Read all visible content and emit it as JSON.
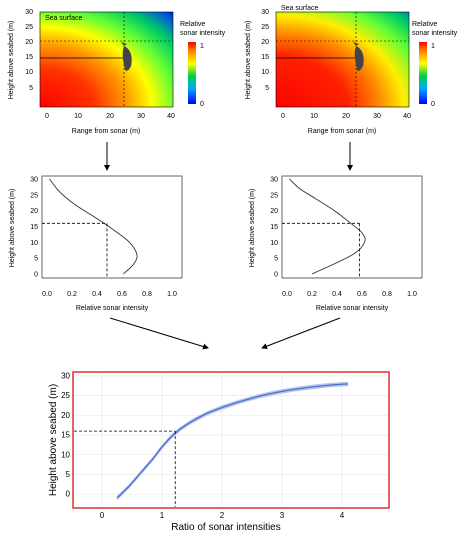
{
  "colors": {
    "heatmap_high": "#ff1a00",
    "heatmap_mid": "#ffff00",
    "heatmap_low": "#0000ff",
    "curve": "#4a6fd6",
    "curve_band": "#b8c4e8",
    "frame_red": "#e0302a"
  },
  "heatmaps": [
    {
      "sea_surface": "Sea surface",
      "y_label": "Height above seabed (m)",
      "x_label": "Range from sonar (m)",
      "x_ticks": [
        "0",
        "10",
        "20",
        "30",
        "40"
      ],
      "y_ticks": [
        "5",
        "10",
        "15",
        "20",
        "25",
        "30"
      ],
      "legend_title_1": "Relative",
      "legend_title_2": "sonar intensity",
      "legend_max": "1",
      "legend_min": "0",
      "fish_icon": "fish-icon"
    },
    {
      "sea_surface": "Sea surface",
      "y_label": "Height above seabed (m)",
      "x_label": "Range from sonar (m)",
      "x_ticks": [
        "0",
        "10",
        "20",
        "30",
        "40"
      ],
      "y_ticks": [
        "5",
        "10",
        "15",
        "20",
        "25",
        "30"
      ],
      "legend_title_1": "Relative",
      "legend_title_2": "sonar intensity",
      "legend_max": "1",
      "legend_min": "0",
      "fish_icon": "fish-icon"
    }
  ],
  "chart_data": [
    {
      "type": "line",
      "xlabel": "Relative sonar intensity",
      "ylabel": "Height above seabed (m)",
      "xlim": [
        0,
        1
      ],
      "ylim": [
        0,
        30
      ],
      "x_ticks": [
        "0.0",
        "0.2",
        "0.4",
        "0.6",
        "0.8",
        "1.0"
      ],
      "y_ticks": [
        "0",
        "5",
        "10",
        "15",
        "20",
        "25",
        "30"
      ],
      "x": [
        0.02,
        0.1,
        0.22,
        0.38,
        0.53,
        0.66,
        0.72,
        0.69,
        0.61
      ],
      "y": [
        30,
        26,
        22,
        18,
        14,
        10,
        6,
        3,
        0
      ],
      "highlight": {
        "x": 0.48,
        "y": 16
      }
    },
    {
      "type": "line",
      "xlabel": "Relative sonar intensity",
      "ylabel": "Height above seabed (m)",
      "xlim": [
        0,
        1
      ],
      "ylim": [
        0,
        30
      ],
      "x_ticks": [
        "0.0",
        "0.2",
        "0.4",
        "0.6",
        "0.8",
        "1.0"
      ],
      "y_ticks": [
        "0",
        "5",
        "10",
        "15",
        "20",
        "25",
        "30"
      ],
      "x": [
        0.02,
        0.1,
        0.22,
        0.38,
        0.51,
        0.6,
        0.62,
        0.52,
        0.2
      ],
      "y": [
        30,
        27,
        24,
        20,
        16,
        13,
        10,
        6,
        0
      ],
      "highlight": {
        "x": 0.58,
        "y": 16
      }
    },
    {
      "type": "line",
      "xlabel": "Ratio of sonar intensities",
      "ylabel": "Height above seabed (m)",
      "xlim": [
        -0.4,
        4.7
      ],
      "ylim": [
        -2,
        30
      ],
      "x_ticks": [
        "0",
        "1",
        "2",
        "3",
        "4"
      ],
      "y_ticks": [
        "0",
        "5",
        "10",
        "15",
        "20",
        "25",
        "30"
      ],
      "grid": true,
      "x": [
        0.25,
        0.45,
        0.65,
        0.85,
        1.0,
        1.15,
        1.3,
        1.5,
        1.75,
        2.0,
        2.3,
        2.6,
        2.9,
        3.2,
        3.5,
        3.8,
        4.1
      ],
      "y": [
        -1,
        2,
        5.5,
        9,
        12,
        14.5,
        16.5,
        18.5,
        20.5,
        22,
        23.5,
        24.8,
        25.8,
        26.6,
        27.2,
        27.7,
        28
      ],
      "highlight": {
        "x": 1.22,
        "y": 16
      }
    }
  ]
}
